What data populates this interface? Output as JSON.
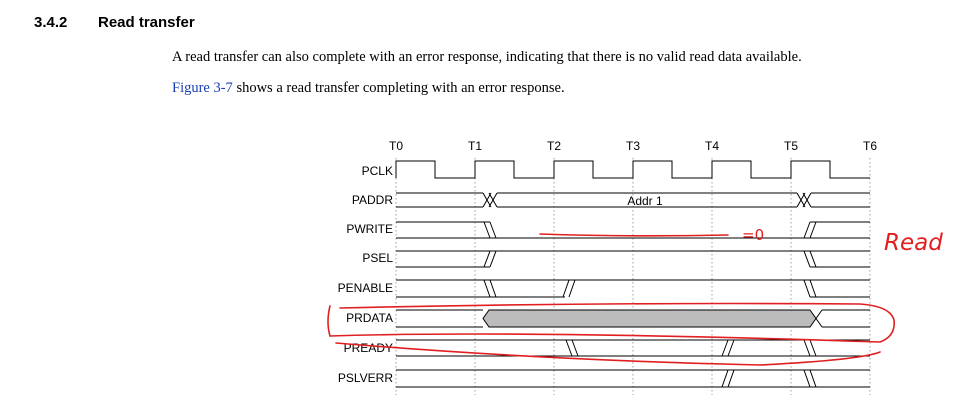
{
  "section": {
    "number": "3.4.2",
    "title": "Read transfer"
  },
  "paragraphs": {
    "p1": "A read transfer can also complete with an error response, indicating that there is no valid read data available.",
    "p2_link": "Figure 3-7",
    "p2_rest": " shows a read transfer completing with an error response."
  },
  "diagram": {
    "times": [
      "T0",
      "T1",
      "T2",
      "T3",
      "T4",
      "T5",
      "T6"
    ],
    "signals": [
      "PCLK",
      "PADDR",
      "PWRITE",
      "PSEL",
      "PENABLE",
      "PRDATA",
      "PREADY",
      "PSLVERR"
    ],
    "address_label": "Addr 1"
  },
  "annotations": {
    "zero_note": "=0",
    "read_note": "Read",
    "ink_color": "#e02020"
  }
}
